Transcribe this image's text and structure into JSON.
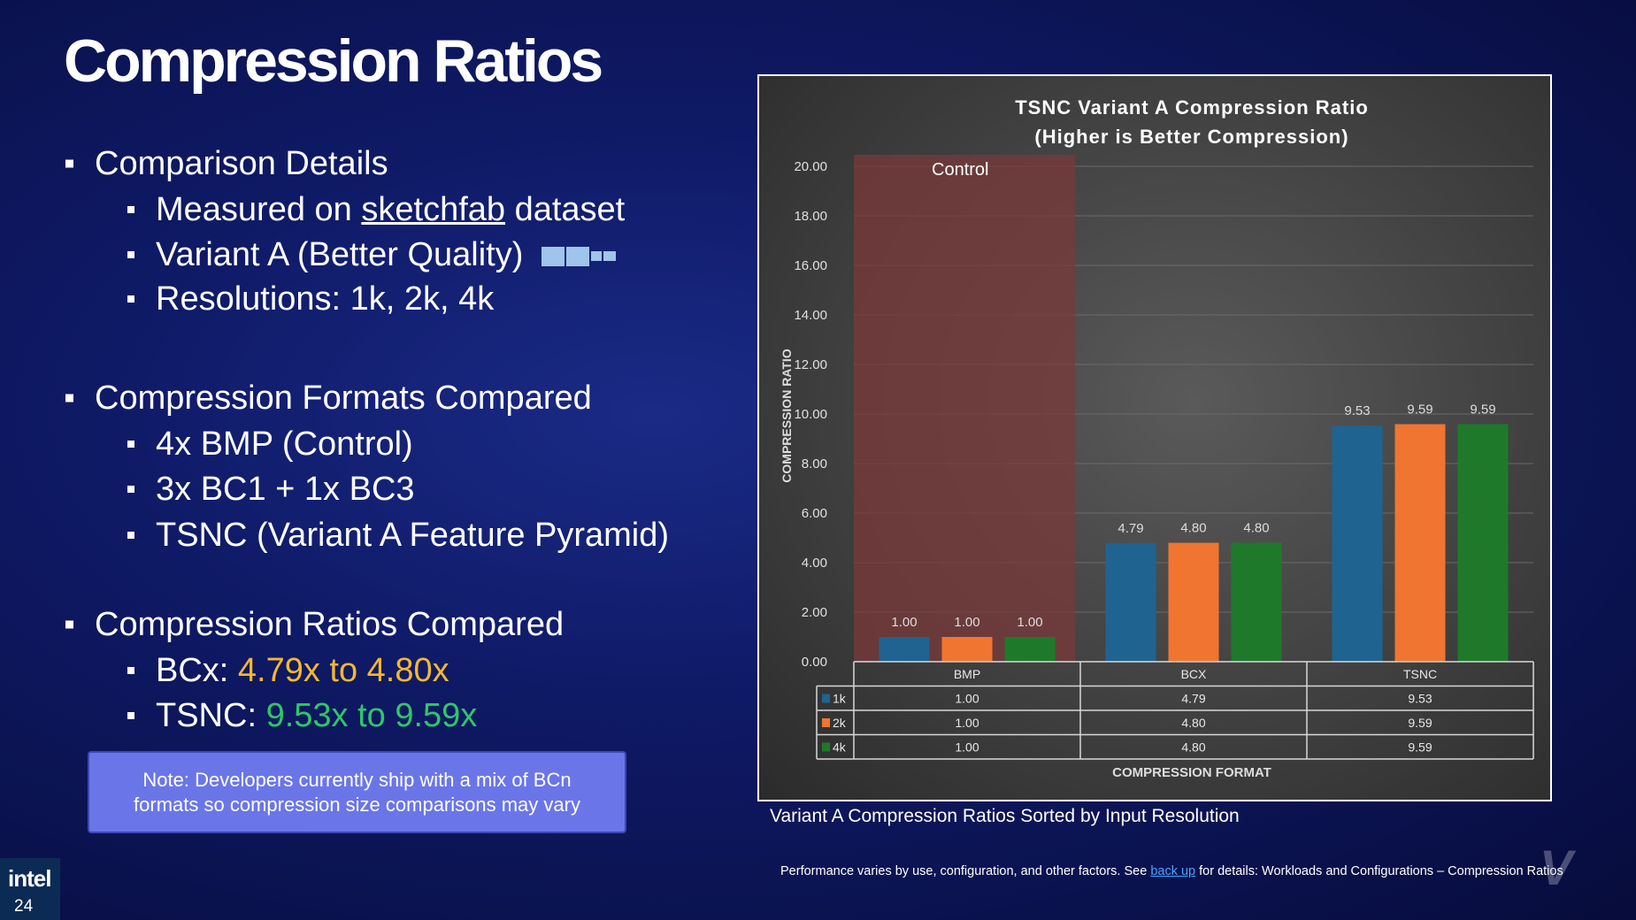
{
  "slide": {
    "title": "Compression Ratios",
    "sections": [
      {
        "heading": "Comparison Details",
        "items": [
          {
            "pre": "Measured on ",
            "link": "sketchfab",
            "post": " dataset"
          },
          {
            "pre": "Variant A (Better Quality)",
            "link": "",
            "post": ""
          },
          {
            "pre": " Resolutions: 1k, 2k, 4k",
            "link": "",
            "post": ""
          }
        ]
      },
      {
        "heading": "Compression Formats Compared",
        "items": [
          {
            "pre": "4x BMP (Control)",
            "link": "",
            "post": ""
          },
          {
            "pre": "3x BC1 + 1x BC3",
            "link": "",
            "post": ""
          },
          {
            "pre": "TSNC (Variant A Feature Pyramid)",
            "link": "",
            "post": ""
          }
        ]
      },
      {
        "heading": "Compression Ratios Compared",
        "items": [
          {
            "label": "BCx: ",
            "value": "4.79x to 4.80x",
            "color": "#f5b82e"
          },
          {
            "label": "TSNC: ",
            "value": "9.53x to 9.59x",
            "color": "#2ec866"
          }
        ]
      }
    ],
    "note_line1": "Note: Developers currently ship with a mix of BCn",
    "note_line2": "formats so compression size comparisons may vary",
    "caption": "Variant A Compression Ratios Sorted by Input Resolution",
    "footer_pre": "Performance varies by use, configuration, and other factors. See ",
    "footer_link": "back up",
    "footer_post": " for details: Workloads and Configurations – Compression Ratios",
    "logo_word": "intel",
    "logo_num": "24"
  },
  "chart_data": {
    "type": "bar",
    "title_line1": "TSNC Variant A Compression Ratio",
    "title_line2": "(Higher is Better Compression)",
    "xlabel": "COMPRESSION FORMAT",
    "ylabel": "COMPRESSION RATIO",
    "ylim": [
      0,
      20
    ],
    "yticks": [
      "0.00",
      "2.00",
      "4.00",
      "6.00",
      "8.00",
      "10.00",
      "12.00",
      "14.00",
      "16.00",
      "18.00",
      "20.00"
    ],
    "grid": true,
    "categories": [
      "BMP",
      "BCX",
      "TSNC"
    ],
    "highlight": {
      "category": "BMP",
      "label": "Control",
      "color": "#7a3a3a"
    },
    "series": [
      {
        "name": "1k",
        "color": "#1f6391",
        "values": [
          1.0,
          4.79,
          9.53
        ],
        "labels": [
          "1.00",
          "4.79",
          "9.53"
        ]
      },
      {
        "name": "2k",
        "color": "#f07530",
        "values": [
          1.0,
          4.8,
          9.59
        ],
        "labels": [
          "1.00",
          "4.80",
          "9.59"
        ]
      },
      {
        "name": "4k",
        "color": "#1e7a2a",
        "values": [
          1.0,
          4.8,
          9.59
        ],
        "labels": [
          "1.00",
          "4.80",
          "9.59"
        ]
      }
    ],
    "data_table": true
  }
}
